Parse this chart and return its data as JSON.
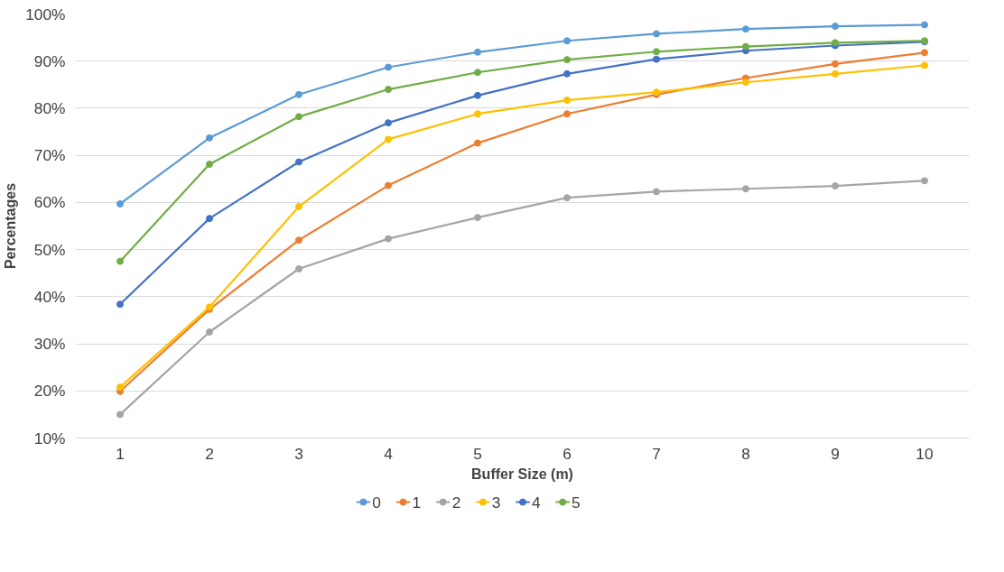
{
  "chart_data": {
    "type": "line",
    "xlabel": "Buffer Size (m)",
    "ylabel": "Percentages",
    "categories": [
      "1",
      "2",
      "3",
      "4",
      "5",
      "6",
      "7",
      "8",
      "9",
      "10"
    ],
    "series": [
      {
        "name": "0",
        "color": "#5b9bd5",
        "values": [
          59.7,
          73.7,
          82.9,
          88.7,
          91.9,
          94.3,
          95.8,
          96.8,
          97.4,
          97.7
        ]
      },
      {
        "name": "1",
        "color": "#ed7d31",
        "values": [
          19.9,
          37.3,
          52.0,
          63.6,
          72.6,
          78.8,
          82.9,
          86.4,
          89.4,
          91.8
        ]
      },
      {
        "name": "2",
        "color": "#a5a5a5",
        "values": [
          15.0,
          32.5,
          45.9,
          52.3,
          56.8,
          61.0,
          62.3,
          62.9,
          63.5,
          64.6
        ]
      },
      {
        "name": "3",
        "color": "#ffc000",
        "values": [
          20.8,
          37.8,
          59.1,
          73.4,
          78.8,
          81.7,
          83.4,
          85.5,
          87.3,
          89.1
        ]
      },
      {
        "name": "4",
        "color": "#4472c4",
        "values": [
          38.4,
          56.6,
          68.6,
          76.9,
          82.7,
          87.3,
          90.4,
          92.2,
          93.3,
          94.1
        ]
      },
      {
        "name": "5",
        "color": "#70ad47",
        "values": [
          47.5,
          68.1,
          78.2,
          84.0,
          87.6,
          90.3,
          92.0,
          93.1,
          93.9,
          94.3
        ]
      }
    ],
    "ylim": [
      10,
      100
    ],
    "yticks": [
      {
        "value": 10,
        "label": "10%"
      },
      {
        "value": 20,
        "label": "20%"
      },
      {
        "value": 30,
        "label": "30%"
      },
      {
        "value": 40,
        "label": "40%"
      },
      {
        "value": 50,
        "label": "50%"
      },
      {
        "value": 60,
        "label": "60%"
      },
      {
        "value": 70,
        "label": "70%"
      },
      {
        "value": 80,
        "label": "80%"
      },
      {
        "value": 90,
        "label": "90%"
      },
      {
        "value": 100,
        "label": "100%"
      }
    ],
    "grid": "y",
    "legend": "bottom",
    "marker": "circle",
    "line_style": "solid"
  }
}
